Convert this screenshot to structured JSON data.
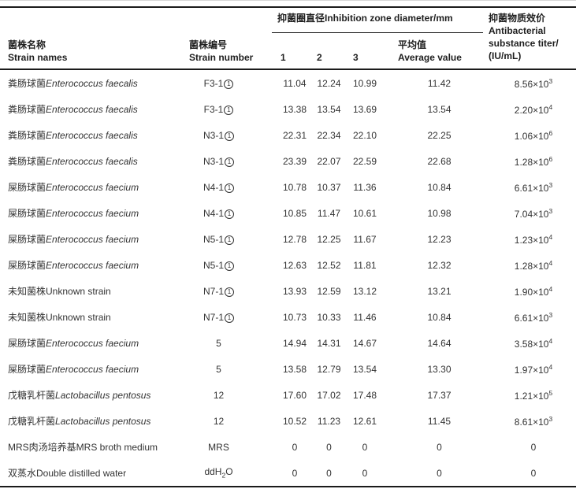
{
  "colors": {
    "text": "#333333",
    "header_text": "#1f1f1f",
    "border": "#1b1b1b",
    "hairline": "#d6d6d6",
    "background": "#ffffff"
  },
  "table": {
    "header": {
      "strain_name": {
        "zh": "菌株名称",
        "en": "Strain names"
      },
      "strain_number": {
        "zh": "菌株编号",
        "en": "Strain number"
      },
      "spanner": "抑菌圈直径Inhibition zone diameter/mm",
      "rep1": "1",
      "rep2": "2",
      "rep3": "3",
      "average": {
        "zh": "平均值",
        "en": "Average value"
      },
      "titer_lines": [
        "抑菌物质效价",
        "Antibacterial",
        "substance titer/",
        "(IU/mL)"
      ]
    },
    "rows": [
      {
        "name_zh": "粪肠球菌",
        "name_en": "Enterococcus faecalis",
        "italic": true,
        "number": "F3-1①",
        "d": [
          "11.04",
          "12.24",
          "10.99"
        ],
        "avg": "11.42",
        "titer": "8.56×10^3"
      },
      {
        "name_zh": "粪肠球菌",
        "name_en": "Enterococcus faecalis",
        "italic": true,
        "number": "F3-1①",
        "d": [
          "13.38",
          "13.54",
          "13.69"
        ],
        "avg": "13.54",
        "titer": "2.20×10^4"
      },
      {
        "name_zh": "粪肠球菌",
        "name_en": "Enterococcus faecalis",
        "italic": true,
        "number": "N3-1①",
        "d": [
          "22.31",
          "22.34",
          "22.10"
        ],
        "avg": "22.25",
        "titer": "1.06×10^6"
      },
      {
        "name_zh": "粪肠球菌",
        "name_en": "Enterococcus faecalis",
        "italic": true,
        "number": "N3-1①",
        "d": [
          "23.39",
          "22.07",
          "22.59"
        ],
        "avg": "22.68",
        "titer": "1.28×10^6"
      },
      {
        "name_zh": "屎肠球菌",
        "name_en": "Enterococcus faecium",
        "italic": true,
        "number": "N4-1①",
        "d": [
          "10.78",
          "10.37",
          "11.36"
        ],
        "avg": "10.84",
        "titer": "6.61×10^3"
      },
      {
        "name_zh": "屎肠球菌",
        "name_en": "Enterococcus faecium",
        "italic": true,
        "number": "N4-1①",
        "d": [
          "10.85",
          "11.47",
          "10.61"
        ],
        "avg": "10.98",
        "titer": "7.04×10^3"
      },
      {
        "name_zh": "屎肠球菌",
        "name_en": "Enterococcus faecium",
        "italic": true,
        "number": "N5-1①",
        "d": [
          "12.78",
          "12.25",
          "11.67"
        ],
        "avg": "12.23",
        "titer": "1.23×10^4"
      },
      {
        "name_zh": "屎肠球菌",
        "name_en": "Enterococcus faecium",
        "italic": true,
        "number": "N5-1①",
        "d": [
          "12.63",
          "12.52",
          "11.81"
        ],
        "avg": "12.32",
        "titer": "1.28×10^4"
      },
      {
        "name_zh": "未知菌株",
        "name_en": "Unknown strain",
        "italic": false,
        "number": "N7-1①",
        "d": [
          "13.93",
          "12.59",
          "13.12"
        ],
        "avg": "13.21",
        "titer": "1.90×10^4"
      },
      {
        "name_zh": "未知菌株",
        "name_en": "Unknown strain",
        "italic": false,
        "number": "N7-1①",
        "d": [
          "10.73",
          "10.33",
          "11.46"
        ],
        "avg": "10.84",
        "titer": "6.61×10^3"
      },
      {
        "name_zh": "屎肠球菌",
        "name_en": "Enterococcus faecium",
        "italic": true,
        "number": "5",
        "d": [
          "14.94",
          "14.31",
          "14.67"
        ],
        "avg": "14.64",
        "titer": "3.58×10^4"
      },
      {
        "name_zh": "屎肠球菌",
        "name_en": "Enterococcus faecium",
        "italic": true,
        "number": "5",
        "d": [
          "13.58",
          "12.79",
          "13.54"
        ],
        "avg": "13.30",
        "titer": "1.97×10^4"
      },
      {
        "name_zh": "戊糖乳杆菌",
        "name_en": "Lactobacillus pentosus",
        "italic": true,
        "number": "12",
        "d": [
          "17.60",
          "17.02",
          "17.48"
        ],
        "avg": "17.37",
        "titer": "1.21×10^5"
      },
      {
        "name_zh": "戊糖乳杆菌",
        "name_en": "Lactobacillus pentosus",
        "italic": true,
        "number": "12",
        "d": [
          "10.52",
          "11.23",
          "12.61"
        ],
        "avg": "11.45",
        "titer": "8.61×10^3"
      },
      {
        "name_zh": "MRS肉汤培养基",
        "name_en": "MRS broth medium",
        "italic": false,
        "number": "MRS",
        "d": [
          "0",
          "0",
          "0"
        ],
        "avg": "0",
        "titer": "0"
      },
      {
        "name_zh": "双蒸水",
        "name_en": "Double distilled water",
        "italic": false,
        "number": "ddH~2O",
        "d": [
          "0",
          "0",
          "0"
        ],
        "avg": "0",
        "titer": "0"
      }
    ]
  }
}
